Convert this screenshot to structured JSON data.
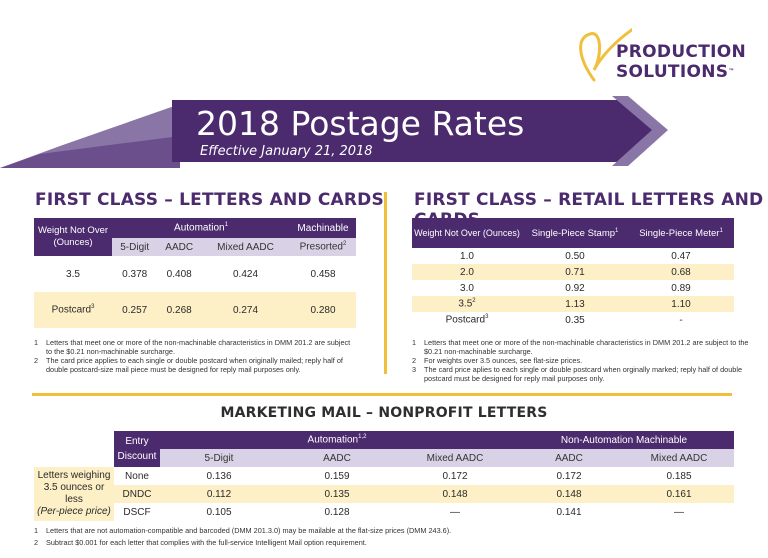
{
  "logo": {
    "line1": "PRODUCTION",
    "line2": "SOLUTIONS",
    "tm": "™"
  },
  "banner": {
    "title": "2018 Postage Rates",
    "subtitle": "Effective January 21, 2018"
  },
  "colors": {
    "purple": "#4b2a6e",
    "lavender": "#d9d2e6",
    "cream": "#fdf0c6",
    "gold": "#f0c03d"
  },
  "fc": {
    "title": "FIRST CLASS – LETTERS AND CARDS",
    "h_weight": "Weight Not Over (Ounces)",
    "h_auto": "Automation",
    "h_auto_sup": "1",
    "h_mach": "Machinable",
    "sub": [
      "5-Digit",
      "AADC",
      "Mixed AADC",
      "Presorted"
    ],
    "sub_sup": "2",
    "rows": [
      {
        "w": "3.5",
        "sup": "",
        "v": [
          "0.378",
          "0.408",
          "0.424",
          "0.458"
        ]
      },
      {
        "w": "Postcard",
        "sup": "3",
        "v": [
          "0.257",
          "0.268",
          "0.274",
          "0.280"
        ]
      }
    ],
    "notes": [
      {
        "n": "1",
        "t": "Letters that meet one or more of the non-machinable characteristics in DMM 201.2 are subject to the $0.21 non-machinable surcharge."
      },
      {
        "n": "2",
        "t": "The card price applies to each single or double postcard when originally mailed; reply half of double postcard-size mail piece must be designed for reply mail purposes only."
      }
    ]
  },
  "fr": {
    "title": "FIRST CLASS – RETAIL LETTERS AND CARDS",
    "h_weight": "Weight Not Over (Ounces)",
    "h_stamp": "Single-Piece Stamp",
    "h_stamp_sup": "1",
    "h_meter": "Single-Piece Meter",
    "h_meter_sup": "1",
    "rows": [
      {
        "w": "1.0",
        "sup": "",
        "s": "0.50",
        "m": "0.47"
      },
      {
        "w": "2.0",
        "sup": "",
        "s": "0.71",
        "m": "0.68"
      },
      {
        "w": "3.0",
        "sup": "",
        "s": "0.92",
        "m": "0.89"
      },
      {
        "w": "3.5",
        "sup": "2",
        "s": "1.13",
        "m": "1.10"
      },
      {
        "w": "Postcard",
        "sup": "3",
        "s": "0.35",
        "m": "-"
      }
    ],
    "notes": [
      {
        "n": "1",
        "t": "Letters that meet one or more of the non-machinable characteristics in DMM 201.2 are subject to the $0.21 non-machinable surcharge."
      },
      {
        "n": "2",
        "t": "For weights over 3.5 ounces, see flat-size prices."
      },
      {
        "n": "3",
        "t": "The card price aplies to each single or double postcard when orginally marked; reply half of double postcard must be designed for reply mail purposes only."
      }
    ]
  },
  "mm": {
    "title": "MARKETING MAIL – NONPROFIT LETTERS",
    "h_entry": "Entry Discount",
    "h_auto": "Automation",
    "h_auto_sup": "1,2",
    "h_nonauto": "Non-Automation Machinable",
    "sub": [
      "5-Digit",
      "AADC",
      "Mixed AADC",
      "AADC",
      "Mixed AADC"
    ],
    "label_line1": "Letters weighing",
    "label_line2": "3.5 ounces or less",
    "label_line3": "(Per-piece price)",
    "rows": [
      {
        "entry": "None",
        "v": [
          "0.136",
          "0.159",
          "0.172",
          "0.172",
          "0.185"
        ]
      },
      {
        "entry": "DNDC",
        "v": [
          "0.112",
          "0.135",
          "0.148",
          "0.148",
          "0.161"
        ]
      },
      {
        "entry": "DSCF",
        "v": [
          "0.105",
          "0.128",
          "—",
          "0.141",
          "—"
        ]
      }
    ],
    "notes": [
      {
        "n": "1",
        "t": "Letters that are not automation-compatible and barcoded (DMM 201.3.0) may be mailable at the flat-size prices (DMM 243.6)."
      },
      {
        "n": "2",
        "t": "Subtract $0.001 for each letter that complies with the full-service Intelligent Mail option requirement."
      }
    ]
  }
}
